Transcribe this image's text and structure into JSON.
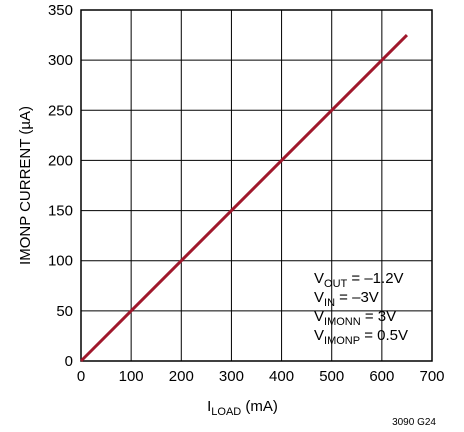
{
  "chart_data": {
    "type": "line",
    "xlabel": {
      "main": "I",
      "sub": "LOAD",
      "unit": " (mA)"
    },
    "ylabel": "IMONP CURRENT (µA)",
    "xlim": [
      0,
      700
    ],
    "ylim": [
      0,
      350
    ],
    "x_ticks": [
      0,
      100,
      200,
      300,
      400,
      500,
      600,
      700
    ],
    "y_ticks": [
      0,
      50,
      100,
      150,
      200,
      250,
      300,
      350
    ],
    "grid": true,
    "series": [
      {
        "color": "#a0182c",
        "x": [
          0,
          650
        ],
        "y": [
          0,
          325
        ]
      }
    ],
    "annotations": [
      {
        "main": "V",
        "sub": "OUT",
        "rest": " = –1.2V"
      },
      {
        "main": "V",
        "sub": "IN",
        "rest": " = –3V"
      },
      {
        "main": "V",
        "sub": "IMONN",
        "rest": " = 3V"
      },
      {
        "main": "V",
        "sub": "IMONP",
        "rest": " = 0.5V"
      }
    ],
    "figure_id": "3090 G24"
  }
}
